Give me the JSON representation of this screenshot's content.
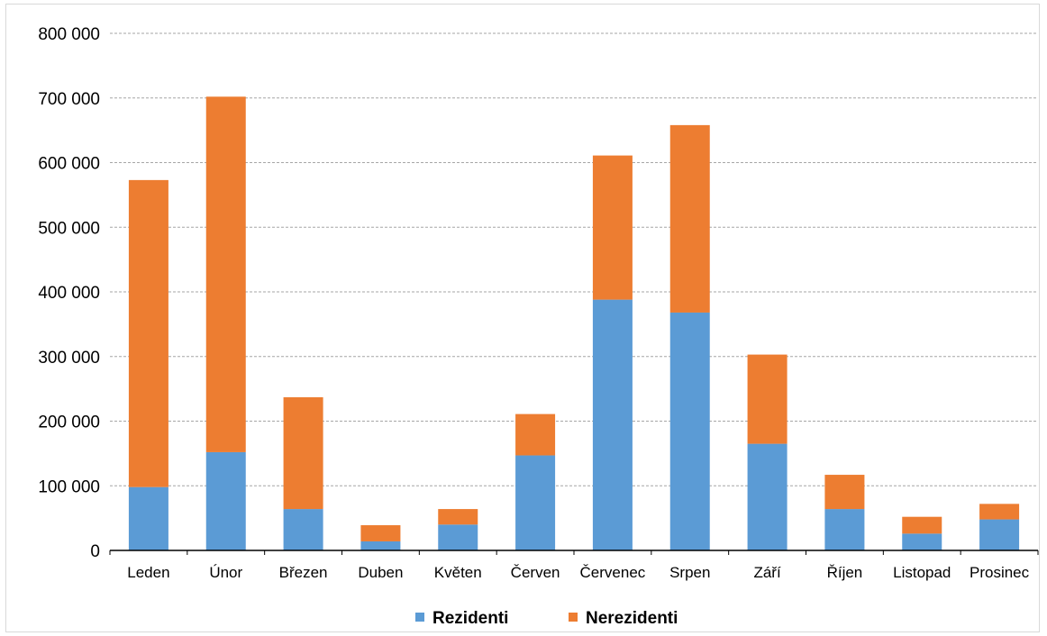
{
  "chart_data": {
    "type": "bar",
    "stacked": true,
    "title": "",
    "xlabel": "",
    "ylabel": "",
    "categories": [
      "Leden",
      "Únor",
      "Březen",
      "Duben",
      "Květen",
      "Červen",
      "Červenec",
      "Srpen",
      "Září",
      "Říjen",
      "Listopad",
      "Prosinec"
    ],
    "series": [
      {
        "name": "Rezidenti",
        "color": "#5b9bd5",
        "values": [
          98000,
          152000,
          64000,
          14000,
          40000,
          147000,
          388000,
          368000,
          165000,
          64000,
          26000,
          48000
        ]
      },
      {
        "name": "Nerezidenti",
        "color": "#ed7d31",
        "values": [
          475000,
          550000,
          173000,
          25000,
          24000,
          64000,
          223000,
          290000,
          138000,
          53000,
          26000,
          24000
        ]
      }
    ],
    "ylim": [
      0,
      800000
    ],
    "yticks": [
      0,
      100000,
      200000,
      300000,
      400000,
      500000,
      600000,
      700000,
      800000
    ],
    "ytick_labels": [
      "0",
      "100 000",
      "200 000",
      "300 000",
      "400 000",
      "500 000",
      "600 000",
      "700 000",
      "800 000"
    ],
    "grid": true,
    "legend_position": "bottom"
  }
}
